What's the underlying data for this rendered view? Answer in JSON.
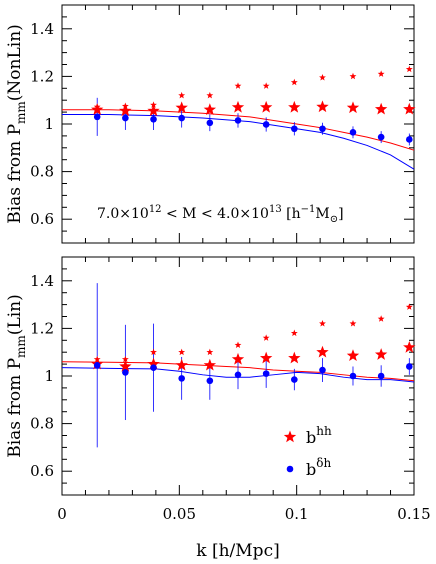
{
  "chart_data": [
    {
      "type": "scatter",
      "panel": "top",
      "ylabel": "Bias from P_mm(NonLin)",
      "annotation": "7.0×10^12 < M < 4.0×10^13 [h^-1 M_⊙]",
      "xlim": [
        0,
        0.15
      ],
      "ylim": [
        0.5,
        1.5
      ],
      "yticks": [
        "0.6",
        "0.8",
        "1",
        "1.2",
        "1.4"
      ],
      "series": [
        {
          "key": "bhh",
          "color": "#ff0000",
          "marker": "star-large",
          "x": [
            0.015,
            0.027,
            0.039,
            0.051,
            0.063,
            0.075,
            0.087,
            0.099,
            0.111,
            0.124,
            0.136,
            0.148
          ],
          "y": [
            1.06,
            1.055,
            1.055,
            1.068,
            1.06,
            1.07,
            1.07,
            1.07,
            1.072,
            1.068,
            1.062,
            1.062
          ]
        },
        {
          "key": "bhh_small",
          "color": "#ff0000",
          "marker": "star-small",
          "x": [
            0.015,
            0.027,
            0.039,
            0.051,
            0.063,
            0.075,
            0.087,
            0.099,
            0.111,
            0.124,
            0.136,
            0.148
          ],
          "y": [
            1.072,
            1.075,
            1.08,
            1.12,
            1.12,
            1.16,
            1.16,
            1.175,
            1.195,
            1.2,
            1.21,
            1.23
          ]
        },
        {
          "key": "bdh",
          "color": "#0000ff",
          "marker": "dot",
          "x": [
            0.015,
            0.027,
            0.039,
            0.051,
            0.063,
            0.075,
            0.087,
            0.099,
            0.111,
            0.124,
            0.136,
            0.148
          ],
          "y": [
            1.03,
            1.025,
            1.02,
            1.025,
            1.005,
            1.015,
            0.998,
            0.98,
            0.98,
            0.965,
            0.945,
            0.935
          ],
          "err": [
            0.08,
            0.05,
            0.045,
            0.04,
            0.035,
            0.03,
            0.03,
            0.028,
            0.025,
            0.025,
            0.025,
            0.025
          ]
        }
      ],
      "lines": [
        {
          "key": "red-curve",
          "color": "#ff0000",
          "x": [
            0,
            0.02,
            0.04,
            0.06,
            0.08,
            0.1,
            0.11,
            0.12,
            0.13,
            0.14,
            0.15
          ],
          "y": [
            1.06,
            1.06,
            1.055,
            1.045,
            1.03,
            1.0,
            0.985,
            0.965,
            0.945,
            0.92,
            0.89
          ]
        },
        {
          "key": "blue-curve",
          "color": "#0000ff",
          "x": [
            0,
            0.02,
            0.04,
            0.06,
            0.08,
            0.1,
            0.11,
            0.12,
            0.13,
            0.14,
            0.15
          ],
          "y": [
            1.04,
            1.04,
            1.035,
            1.025,
            1.01,
            0.98,
            0.965,
            0.94,
            0.91,
            0.87,
            0.81
          ]
        }
      ]
    },
    {
      "type": "scatter",
      "panel": "bottom",
      "ylabel": "Bias from P_mm(Lin)",
      "xlabel": "k [h/Mpc]",
      "xlim": [
        0,
        0.15
      ],
      "ylim": [
        0.5,
        1.5
      ],
      "xticks": [
        "0",
        "0.05",
        "0.1",
        "0.15"
      ],
      "yticks": [
        "0.6",
        "0.8",
        "1",
        "1.2",
        "1.4"
      ],
      "legend": [
        {
          "label": "b^hh",
          "color": "#ff0000",
          "marker": "star-large"
        },
        {
          "label": "b^δh",
          "color": "#0000ff",
          "marker": "dot"
        }
      ],
      "series": [
        {
          "key": "bhh",
          "color": "#ff0000",
          "marker": "star-large",
          "x": [
            0.015,
            0.027,
            0.039,
            0.051,
            0.063,
            0.075,
            0.087,
            0.099,
            0.111,
            0.124,
            0.136,
            0.148
          ],
          "y": [
            1.05,
            1.04,
            1.05,
            1.045,
            1.045,
            1.07,
            1.075,
            1.075,
            1.1,
            1.085,
            1.09,
            1.12
          ]
        },
        {
          "key": "bhh_small",
          "color": "#ff0000",
          "marker": "star-small",
          "x": [
            0.015,
            0.027,
            0.039,
            0.051,
            0.063,
            0.075,
            0.087,
            0.099,
            0.111,
            0.124,
            0.136,
            0.148
          ],
          "y": [
            1.07,
            1.07,
            1.1,
            1.1,
            1.1,
            1.13,
            1.16,
            1.18,
            1.22,
            1.22,
            1.24,
            1.29
          ]
        },
        {
          "key": "bdh",
          "color": "#0000ff",
          "marker": "dot",
          "x": [
            0.015,
            0.027,
            0.039,
            0.051,
            0.063,
            0.075,
            0.087,
            0.099,
            0.111,
            0.124,
            0.136,
            0.148
          ],
          "y": [
            1.045,
            1.015,
            1.035,
            0.99,
            0.98,
            1.005,
            1.01,
            0.985,
            1.025,
            1.0,
            1.0,
            1.04
          ],
          "err": [
            0.345,
            0.2,
            0.185,
            0.09,
            0.08,
            0.06,
            0.06,
            0.045,
            0.05,
            0.04,
            0.045,
            0.035
          ]
        }
      ],
      "lines": [
        {
          "key": "red-curve",
          "color": "#ff0000",
          "x": [
            0,
            0.02,
            0.04,
            0.05,
            0.06,
            0.07,
            0.08,
            0.09,
            0.1,
            0.11,
            0.12,
            0.13,
            0.14,
            0.15
          ],
          "y": [
            1.06,
            1.058,
            1.055,
            1.05,
            1.045,
            1.04,
            1.035,
            1.025,
            1.02,
            1.015,
            1.005,
            0.995,
            0.99,
            0.98
          ]
        },
        {
          "key": "blue-curve",
          "color": "#0000ff",
          "x": [
            0,
            0.02,
            0.04,
            0.05,
            0.06,
            0.07,
            0.08,
            0.09,
            0.1,
            0.11,
            0.12,
            0.13,
            0.14,
            0.15
          ],
          "y": [
            1.035,
            1.032,
            1.03,
            1.02,
            1.005,
            0.995,
            0.995,
            1.005,
            1.015,
            1.01,
            0.995,
            0.985,
            0.985,
            0.975
          ]
        }
      ]
    }
  ]
}
